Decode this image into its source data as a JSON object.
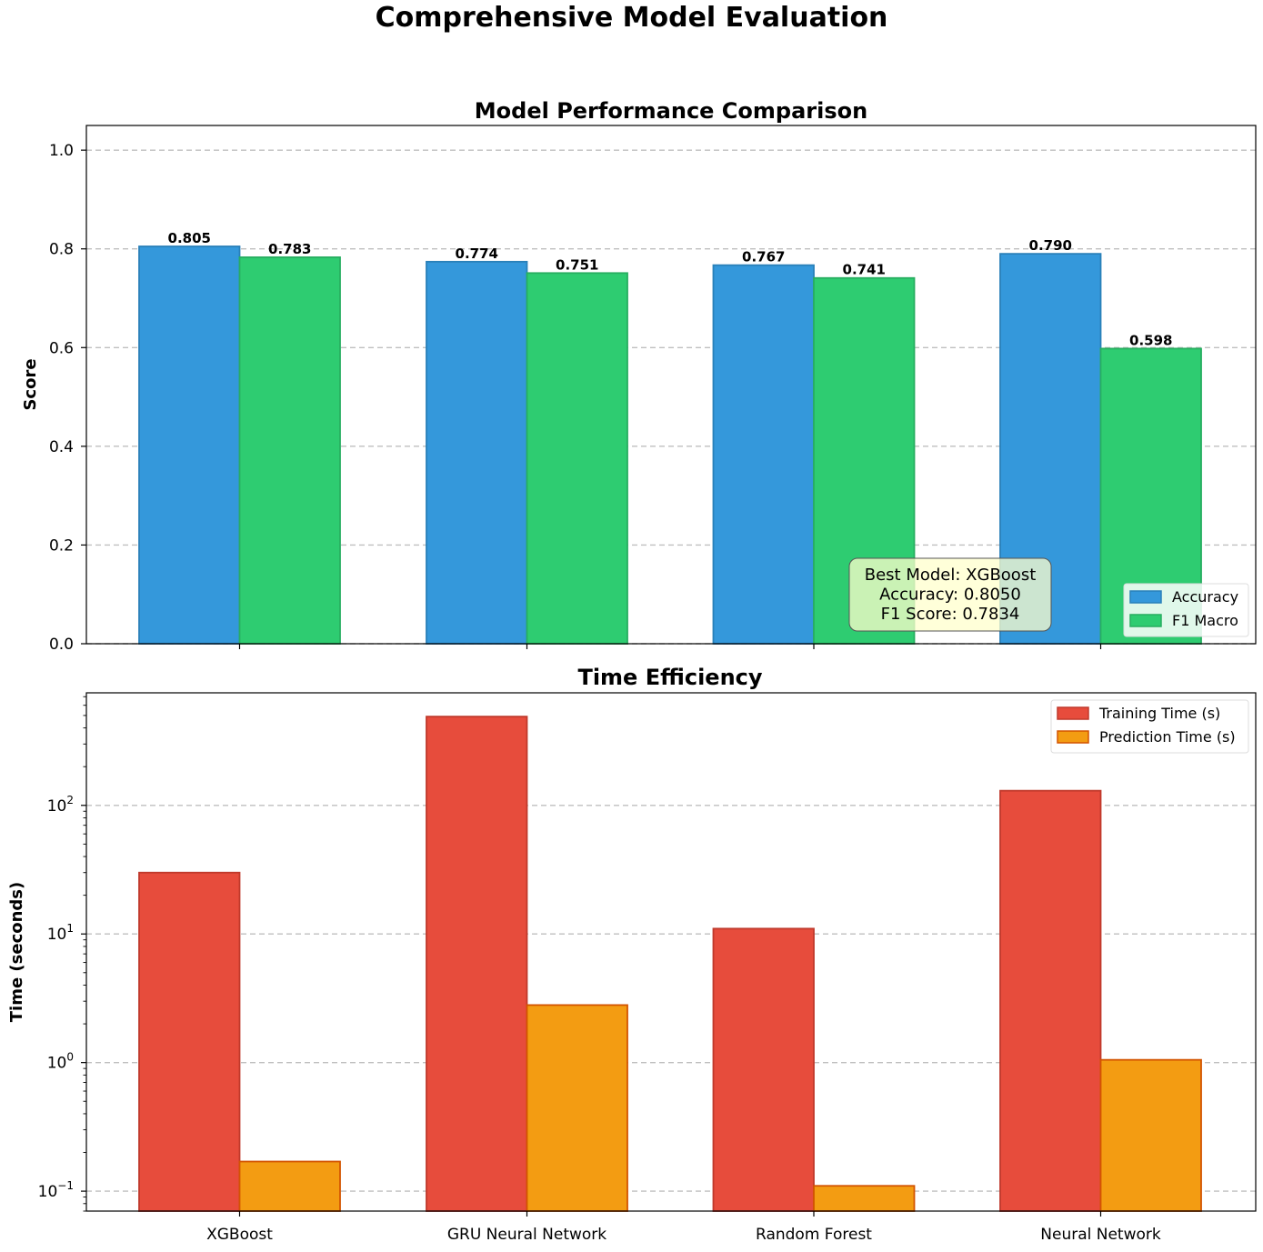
{
  "figure": {
    "title": "Comprehensive Model Evaluation"
  },
  "chart_data": [
    {
      "type": "bar",
      "title": "Model Performance Comparison",
      "xlabel": "",
      "ylabel": "Score",
      "ylim": [
        0,
        1.05
      ],
      "yticks": [
        0.0,
        0.2,
        0.4,
        0.6,
        0.8,
        1.0
      ],
      "ytick_labels": [
        "0.0",
        "0.2",
        "0.4",
        "0.6",
        "0.8",
        "1.0"
      ],
      "grid": "y dashed",
      "categories": [
        "XGBoost",
        "GRU Neural Network",
        "Random Forest",
        "Neural Network"
      ],
      "series": [
        {
          "name": "Accuracy",
          "values": [
            0.805,
            0.774,
            0.767,
            0.79
          ],
          "labels": [
            "0.805",
            "0.774",
            "0.767",
            "0.790"
          ],
          "color": "#3498db",
          "edge": "#2980b9"
        },
        {
          "name": "F1 Macro",
          "values": [
            0.783,
            0.751,
            0.741,
            0.598
          ],
          "labels": [
            "0.783",
            "0.751",
            "0.741",
            "0.598"
          ],
          "color": "#2ecc71",
          "edge": "#27ae60"
        }
      ],
      "legend": "lower-right",
      "annotation": {
        "lines": [
          "Best Model: XGBoost",
          "Accuracy: 0.8050",
          "F1 Score: 0.7834"
        ],
        "color": "#ffffcc"
      }
    },
    {
      "type": "bar",
      "title": "Time Efficiency",
      "xlabel": "",
      "ylabel": "Time (seconds)",
      "yscale": "log",
      "ylim": [
        0.07,
        750
      ],
      "yticks": [
        0.1,
        1,
        10,
        100
      ],
      "ytick_labels": [
        [
          "10",
          "−1"
        ],
        [
          "10",
          "0"
        ],
        [
          "10",
          "1"
        ],
        [
          "10",
          "2"
        ]
      ],
      "grid": "y dashed",
      "categories": [
        "XGBoost",
        "GRU Neural Network",
        "Random Forest",
        "Neural Network"
      ],
      "series": [
        {
          "name": "Training Time (s)",
          "values": [
            30,
            490,
            11,
            130
          ],
          "color": "#e74c3c",
          "edge": "#c0392b"
        },
        {
          "name": "Prediction Time (s)",
          "values": [
            0.17,
            2.8,
            0.11,
            1.05
          ],
          "color": "#f39c12",
          "edge": "#d35400"
        }
      ],
      "legend": "upper-right"
    }
  ]
}
